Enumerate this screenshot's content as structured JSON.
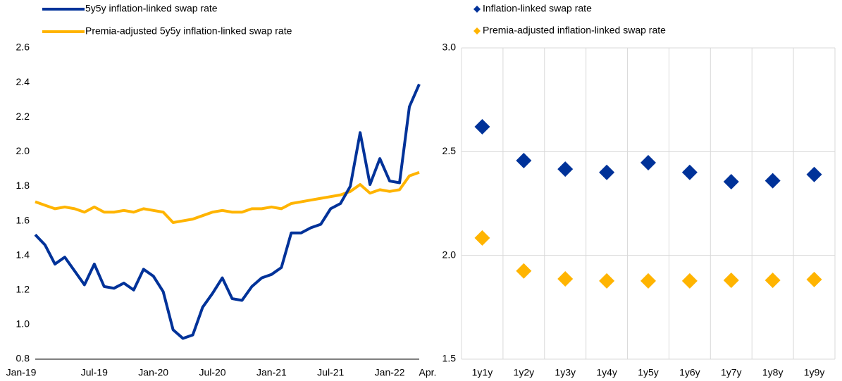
{
  "chart_data": [
    {
      "type": "line",
      "categories": [
        "Jan-19",
        null,
        null,
        null,
        null,
        null,
        "Jul-19",
        null,
        null,
        null,
        null,
        null,
        "Jan-20",
        null,
        null,
        null,
        null,
        null,
        "Jul-20",
        null,
        null,
        null,
        null,
        null,
        "Jan-21",
        null,
        null,
        null,
        null,
        null,
        "Jul-21",
        null,
        null,
        null,
        null,
        null,
        "Jan-22",
        null,
        null,
        "Apr."
      ],
      "series": [
        {
          "name": "5y5y inflation-linked swap rate",
          "color": "#003299",
          "values": [
            1.52,
            1.46,
            1.35,
            1.39,
            1.31,
            1.23,
            1.35,
            1.22,
            1.21,
            1.24,
            1.2,
            1.32,
            1.28,
            1.19,
            0.97,
            0.92,
            0.94,
            1.1,
            1.18,
            1.27,
            1.15,
            1.14,
            1.22,
            1.27,
            1.29,
            1.33,
            1.53,
            1.53,
            1.56,
            1.58,
            1.67,
            1.7,
            1.8,
            2.11,
            1.81,
            1.96,
            1.83,
            1.82,
            2.26,
            2.39
          ]
        },
        {
          "name": "Premia-adjusted 5y5y inflation-linked swap rate",
          "color": "#ffb400",
          "values": [
            1.71,
            1.69,
            1.67,
            1.68,
            1.67,
            1.65,
            1.68,
            1.65,
            1.65,
            1.66,
            1.65,
            1.67,
            1.66,
            1.65,
            1.59,
            1.6,
            1.61,
            1.63,
            1.65,
            1.66,
            1.65,
            1.65,
            1.67,
            1.67,
            1.68,
            1.67,
            1.7,
            1.71,
            1.72,
            1.73,
            1.74,
            1.75,
            1.77,
            1.81,
            1.76,
            1.78,
            1.77,
            1.78,
            1.86,
            1.88
          ]
        }
      ],
      "ylim": [
        0.8,
        2.6
      ],
      "yticks": [
        0.8,
        {
          "value": 1,
          "label": "1.0"
        },
        1.2,
        1.4,
        1.6,
        1.8,
        {
          "value": 2,
          "label": "2.0"
        },
        2.2,
        2.4,
        2.6
      ],
      "grid": false
    },
    {
      "type": "scatter",
      "categories": [
        "1y1y",
        "1y2y",
        "1y3y",
        "1y4y",
        "1y5y",
        "1y6y",
        "1y7y",
        "1y8y",
        "1y9y"
      ],
      "series": [
        {
          "name": "Inflation-linked swap rate",
          "color": "#003299",
          "values": [
            2.62,
            2.457,
            2.416,
            2.4,
            2.447,
            2.4,
            2.355,
            2.36,
            2.39
          ]
        },
        {
          "name": "Premia-adjusted inflation-linked swap rate",
          "color": "#ffb400",
          "values": [
            2.084,
            1.925,
            1.887,
            1.877,
            1.877,
            1.877,
            1.88,
            1.88,
            1.884
          ]
        }
      ],
      "ylim": [
        1.5,
        3.0
      ],
      "yticks": [
        1.5,
        {
          "value": 2,
          "label": "2.0"
        },
        2.5,
        {
          "value": 3,
          "label": "3.0"
        }
      ],
      "grid": true
    }
  ]
}
